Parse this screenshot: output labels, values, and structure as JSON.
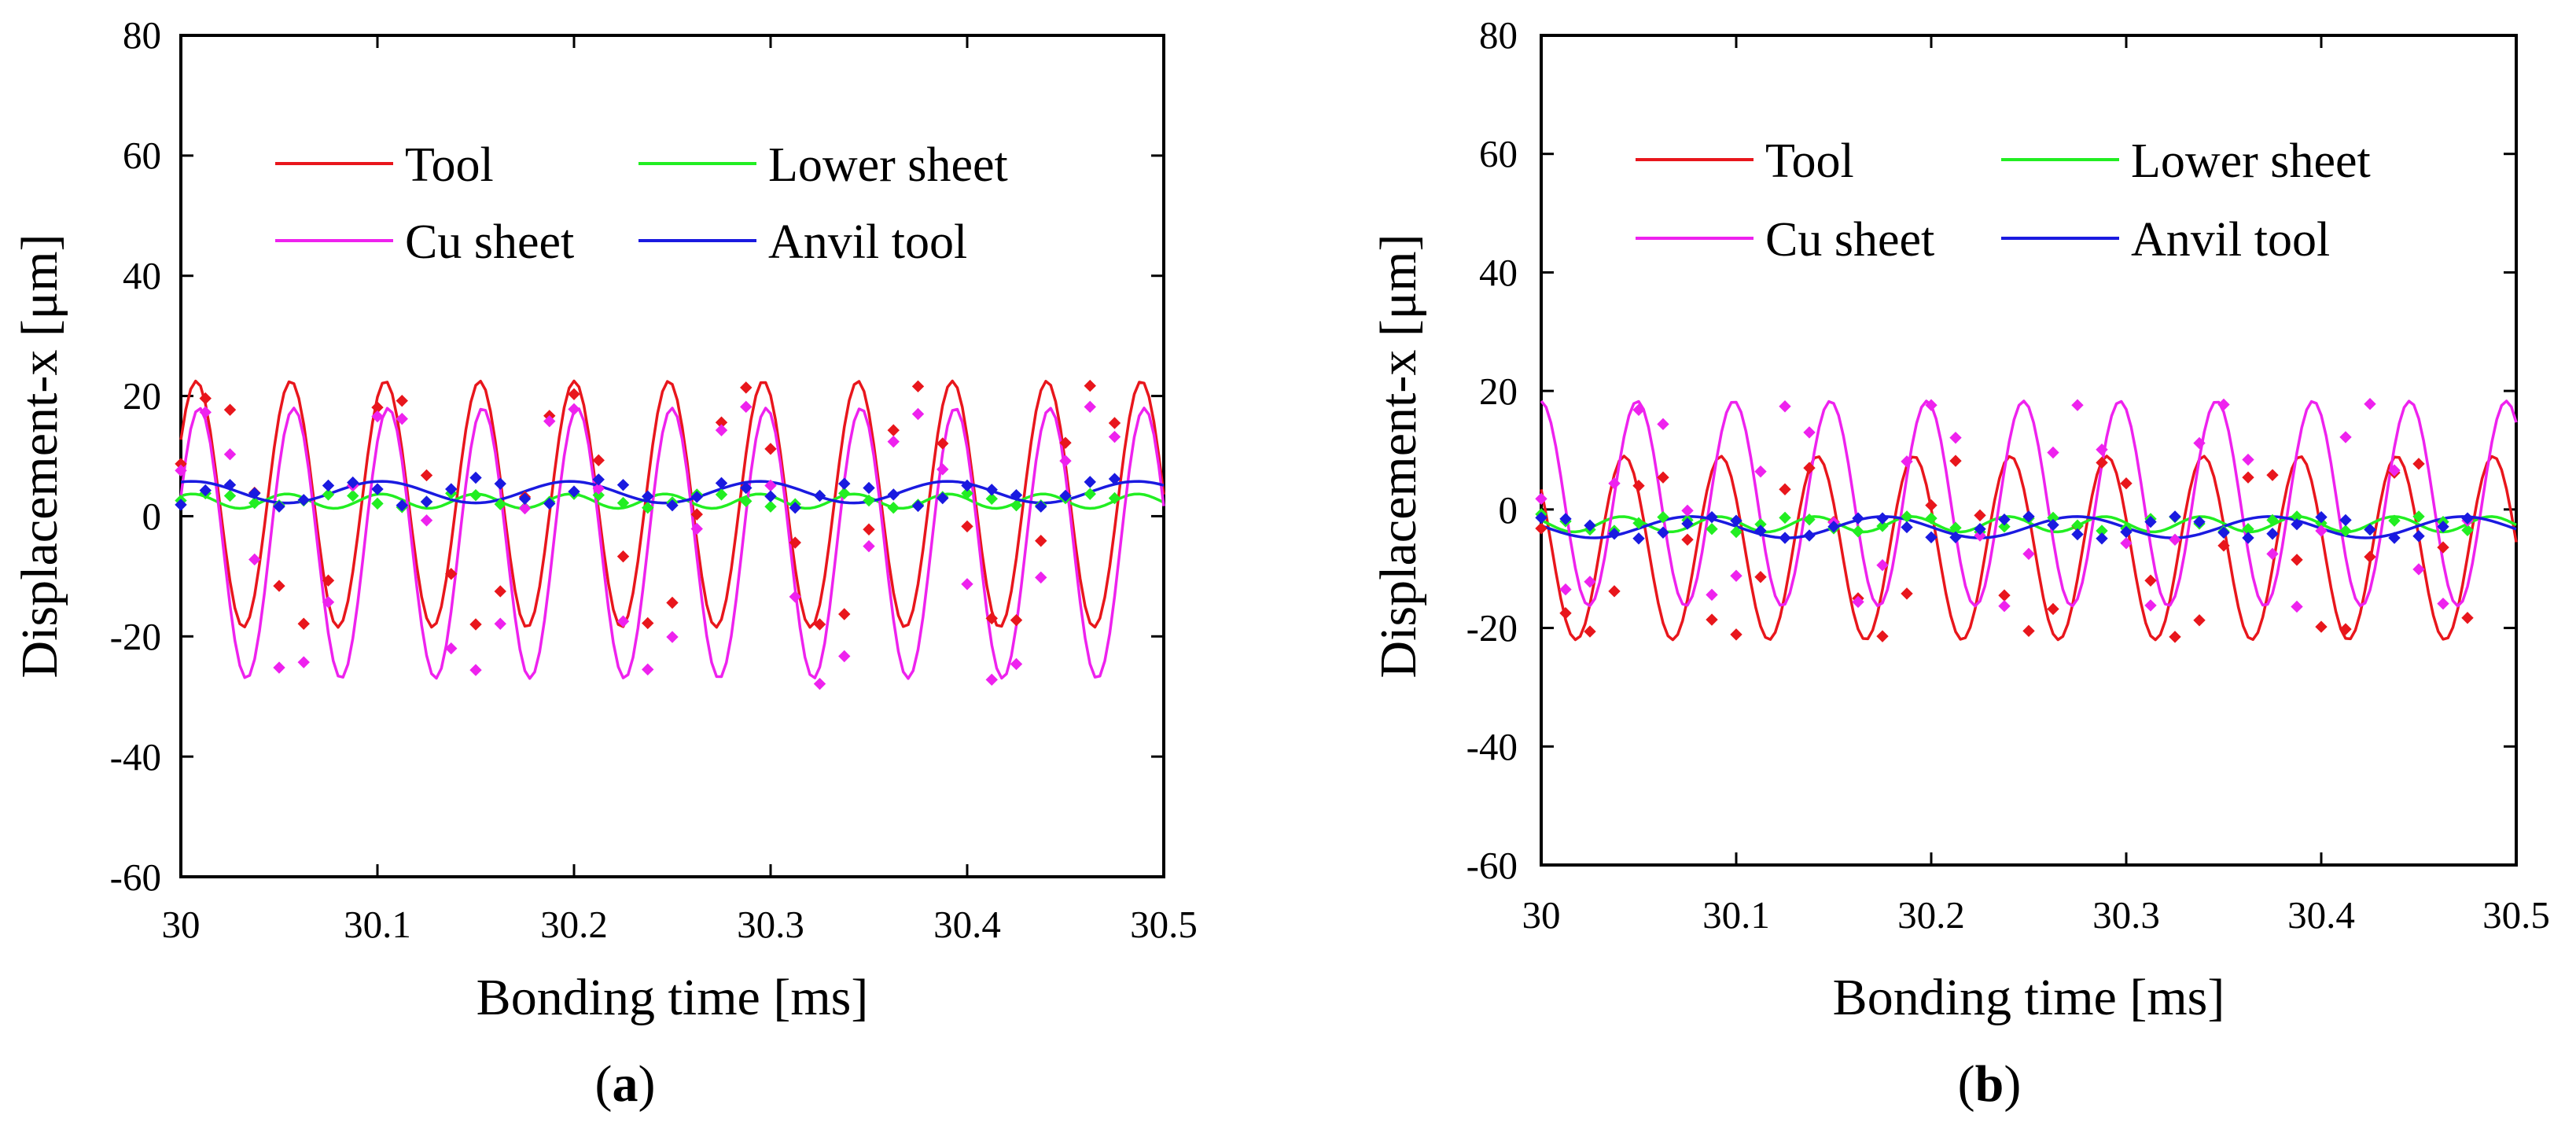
{
  "chart_data": [
    {
      "type": "line",
      "panel_label": {
        "open": "(",
        "letter": "a",
        "close": ")"
      },
      "xlabel": "Bonding time [ms]",
      "ylabel": "Displacement-x [μm]",
      "xlim": [
        30,
        30.5
      ],
      "ylim": [
        -60,
        80
      ],
      "xticks": [
        "30",
        "30.1",
        "30.2",
        "30.3",
        "30.4",
        "30.5"
      ],
      "yticks": [
        "-60",
        "-40",
        "-20",
        "0",
        "20",
        "40",
        "60",
        "80"
      ],
      "sample_period_ms": 0.0125,
      "series": [
        {
          "name": "Tool",
          "color": "#e8161c",
          "model": {
            "mean": 2,
            "amplitude": 20.5,
            "frequency_khz": 20.8,
            "phase_rad": 0.55,
            "samples": 200
          },
          "markers": [
            8.7,
            19.6,
            17.7,
            3.9,
            -11.6,
            -17.9,
            -10.7,
            5.1,
            18.1,
            19.2,
            6.8,
            -9.6,
            -18.0,
            -12.5,
            3.2,
            16.7,
            20.3,
            9.3,
            -6.7,
            -17.8,
            -14.4,
            0.3,
            15.6,
            21.4,
            11.2,
            -4.4,
            -18.0,
            -16.3,
            -2.2,
            14.3,
            21.6,
            12.1,
            -1.7,
            -17.0,
            -17.3,
            -4.1,
            12.2,
            21.7,
            15.5
          ]
        },
        {
          "name": "Lower sheet",
          "color": "#22ee22",
          "model": {
            "mean": 2.5,
            "amplitude": 1.2,
            "frequency_khz": 20.8,
            "phase_rad": 0.8,
            "samples": 200
          },
          "markers": [
            2.6,
            3.8,
            3.4,
            2.2,
            1.8,
            2.6,
            3.6,
            3.4,
            2.1,
            1.5,
            2.4,
            3.8,
            3.5,
            2.0,
            1.4,
            2.4,
            3.7,
            3.5,
            2.2,
            1.4,
            2.3,
            3.6,
            3.6,
            2.5,
            1.6,
            2.0,
            3.4,
            3.8,
            2.6,
            1.4,
            1.9,
            3.2,
            3.8,
            2.9,
            1.8,
            1.8,
            3.0,
            3.7,
            3.0
          ]
        },
        {
          "name": "Cu sheet",
          "color": "#ee22ee",
          "model": {
            "mean": -4.5,
            "amplitude": 22.5,
            "frequency_khz": 20.8,
            "phase_rad": 0.35,
            "samples": 200
          },
          "markers": [
            7.6,
            17.3,
            10.3,
            -7.2,
            -25.2,
            -24.3,
            -14.3,
            5.1,
            16.6,
            16.2,
            -0.7,
            -22.0,
            -25.6,
            -17.9,
            1.3,
            15.8,
            17.8,
            4.6,
            -17.5,
            -25.5,
            -20.1,
            -2.1,
            14.3,
            18.2,
            5.1,
            -13.4,
            -27.9,
            -23.3,
            -5.0,
            12.4,
            17.0,
            7.8,
            -11.3,
            -27.2,
            -24.6,
            -10.2,
            9.2,
            18.2,
            13.2
          ]
        },
        {
          "name": "Anvil tool",
          "color": "#1a1ae0",
          "model": {
            "mean": 4,
            "amplitude": 1.8,
            "frequency_khz": 10.4,
            "phase_rad": 1.2,
            "samples": 200
          },
          "markers": [
            1.9,
            4.3,
            5.2,
            3.8,
            1.6,
            2.7,
            5.1,
            5.6,
            4.5,
            1.8,
            2.4,
            4.5,
            6.4,
            5.4,
            2.9,
            2.1,
            4.1,
            6.1,
            5.2,
            3.3,
            1.8,
            3.2,
            5.5,
            4.7,
            3.3,
            1.4,
            3.4,
            5.4,
            4.7,
            3.6,
            1.7,
            3.0,
            5.1,
            4.4,
            3.5,
            1.6,
            3.4,
            5.7,
            6.2
          ]
        }
      ]
    },
    {
      "type": "line",
      "panel_label": {
        "open": "(",
        "letter": "b",
        "close": ")"
      },
      "xlabel": "Bonding time [ms]",
      "ylabel": "Displacement-x [μm]",
      "xlim": [
        30,
        30.5
      ],
      "ylim": [
        -60,
        80
      ],
      "xticks": [
        "30",
        "30.1",
        "30.2",
        "30.3",
        "30.4",
        "30.5"
      ],
      "yticks": [
        "-60",
        "-40",
        "-20",
        "0",
        "20",
        "40",
        "60",
        "80"
      ],
      "sample_period_ms": 0.0125,
      "series": [
        {
          "name": "Tool",
          "color": "#e8161c",
          "model": {
            "mean": -6.5,
            "amplitude": 15.5,
            "frequency_khz": 20.2,
            "phase_rad": 2.45,
            "samples": 200
          },
          "markers": [
            -3.2,
            -17.5,
            -20.6,
            -13.8,
            4.0,
            5.4,
            -5.1,
            -18.6,
            -21.1,
            -11.4,
            3.4,
            7.0,
            -2.1,
            -15.0,
            -21.4,
            -14.2,
            0.7,
            8.2,
            -1.0,
            -14.5,
            -20.5,
            -16.8,
            -2.8,
            7.9,
            4.4,
            -12.0,
            -21.5,
            -18.7,
            -6.1,
            5.4,
            5.8,
            -8.5,
            -19.8,
            -20.2,
            -8.0,
            6.2,
            7.7,
            -6.4,
            -18.3
          ]
        },
        {
          "name": "Lower sheet",
          "color": "#22ee22",
          "model": {
            "mean": -2.5,
            "amplitude": 1.3,
            "frequency_khz": 20.2,
            "phase_rad": 2.6,
            "samples": 200
          },
          "markers": [
            -0.8,
            -2.0,
            -3.4,
            -3.6,
            -2.3,
            -1.3,
            -1.8,
            -3.3,
            -3.8,
            -2.5,
            -1.4,
            -1.7,
            -3.2,
            -3.7,
            -2.8,
            -1.2,
            -1.5,
            -3.1,
            -3.8,
            -2.9,
            -1.5,
            -1.4,
            -2.7,
            -3.6,
            -3.2,
            -1.6,
            -1.3,
            -2.4,
            -3.7,
            -3.3,
            -1.8,
            -1.2,
            -2.3,
            -3.6,
            -3.4,
            -1.9,
            -1.2,
            -2.1,
            -3.5
          ]
        },
        {
          "name": "Cu sheet",
          "color": "#ee22ee",
          "model": {
            "mean": 1,
            "amplitude": 17.3,
            "frequency_khz": 20.2,
            "phase_rad": 1.6,
            "samples": 200
          },
          "markers": [
            1.8,
            -13.5,
            -12.2,
            4.4,
            16.8,
            14.4,
            -0.2,
            -14.4,
            -11.2,
            6.4,
            17.4,
            13.0,
            -2.2,
            -15.6,
            -9.4,
            8.1,
            17.6,
            12.1,
            -4.4,
            -16.3,
            -7.5,
            9.6,
            17.6,
            10.1,
            -5.7,
            -16.2,
            -5.1,
            11.2,
            17.7,
            8.4,
            -7.5,
            -16.4,
            -3.6,
            12.2,
            17.8,
            6.6,
            -10.1,
            -15.9,
            -1.9
          ]
        },
        {
          "name": "Anvil tool",
          "color": "#1a1ae0",
          "model": {
            "mean": -3,
            "amplitude": 1.8,
            "frequency_khz": 10.1,
            "phase_rad": 3.0,
            "samples": 200
          },
          "markers": [
            -1.4,
            -1.6,
            -2.7,
            -4.1,
            -4.9,
            -3.9,
            -2.4,
            -1.3,
            -1.9,
            -3.6,
            -4.8,
            -4.4,
            -2.9,
            -1.5,
            -1.5,
            -3.0,
            -4.7,
            -4.7,
            -3.3,
            -1.7,
            -1.2,
            -2.6,
            -4.2,
            -4.9,
            -3.8,
            -2.1,
            -1.2,
            -2.1,
            -3.9,
            -4.8,
            -4.1,
            -2.5,
            -1.3,
            -1.8,
            -3.4,
            -4.8,
            -4.5,
            -2.9,
            -1.5
          ]
        }
      ]
    }
  ]
}
